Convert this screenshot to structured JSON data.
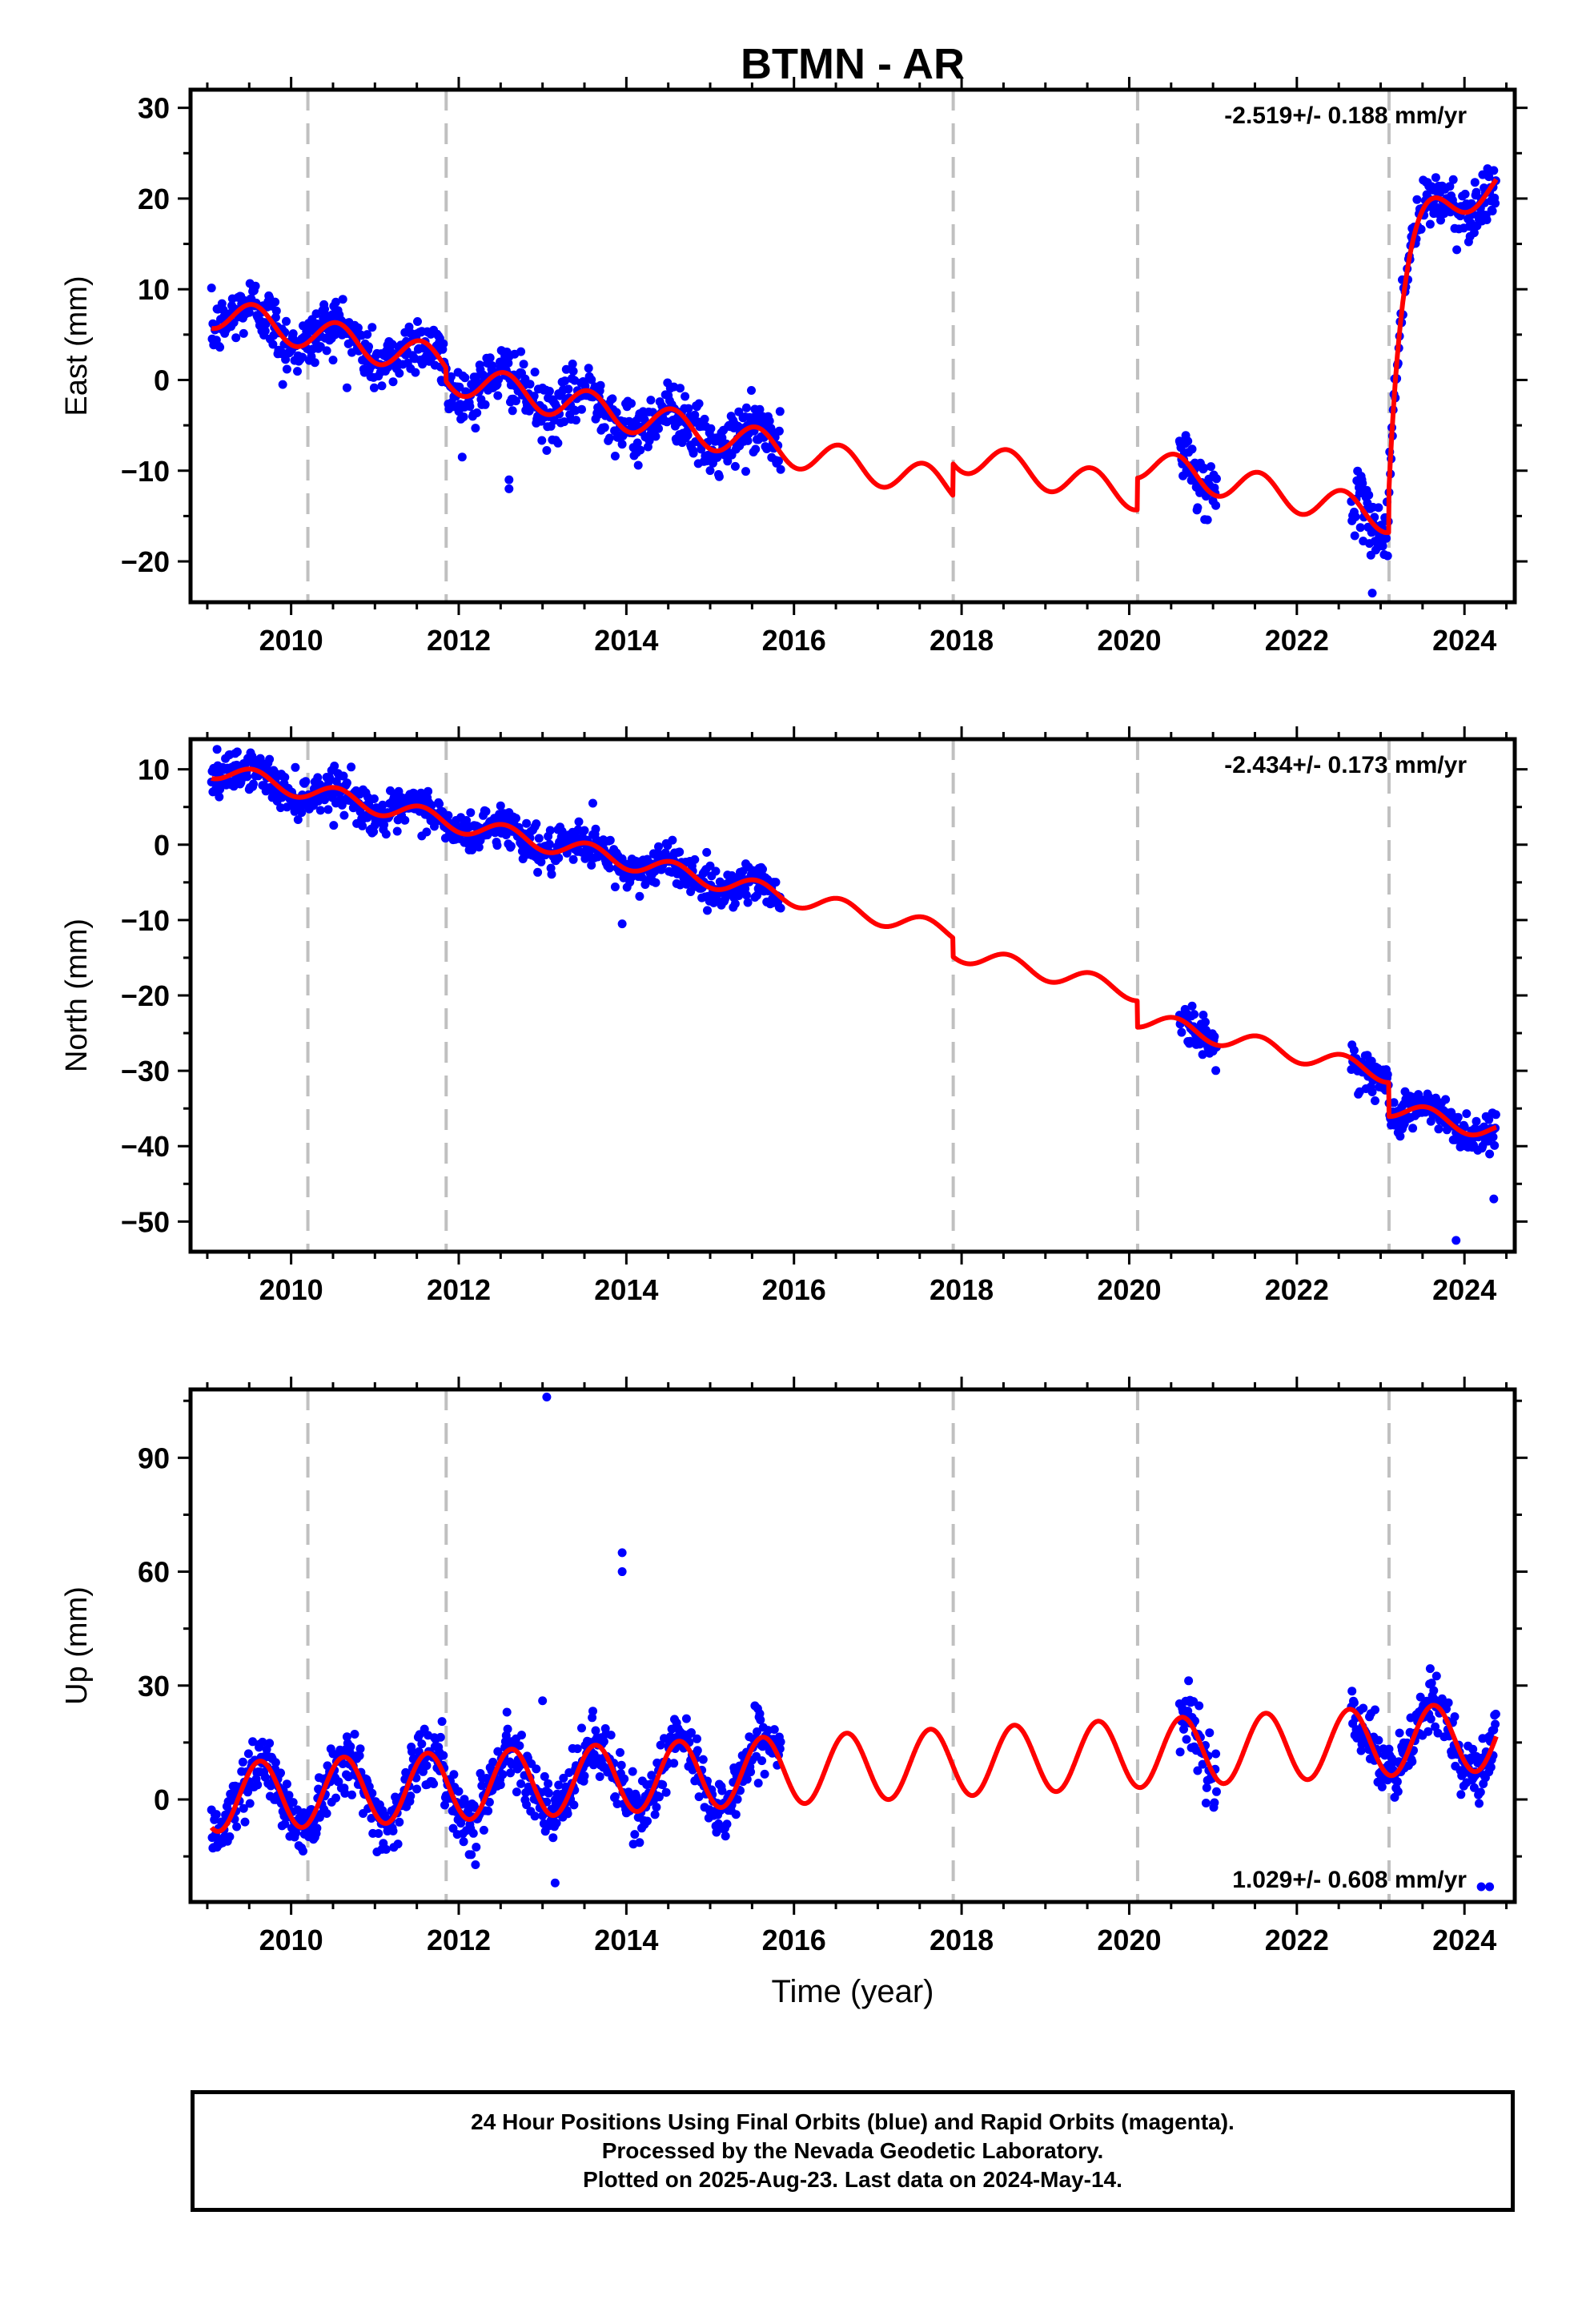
{
  "title": "BTMN - AR",
  "colors": {
    "points": "#0000ff",
    "model": "#ff0000",
    "steps": "#c0c0c0",
    "frame": "#000000"
  },
  "chart_data": [
    {
      "type": "scatter",
      "component": "east",
      "ylabel": "East (mm)",
      "xlabel": "",
      "rate_label": "-2.519+/- 0.188 mm/yr",
      "rate_position": "top-right",
      "xlim": [
        2008.8,
        2024.6
      ],
      "ylim": [
        -24.5,
        32
      ],
      "xticks": [
        2010,
        2012,
        2014,
        2016,
        2018,
        2020,
        2022,
        2024
      ],
      "yticks": [
        -20,
        -10,
        0,
        10,
        20,
        30
      ],
      "step_lines": [
        2010.2,
        2011.85,
        2017.9,
        2020.1,
        2023.1
      ],
      "data_segments": [
        [
          2009.05,
          2015.85
        ],
        [
          2020.6,
          2021.05
        ],
        [
          2022.65,
          2024.38
        ]
      ],
      "model": {
        "start": 2009.05,
        "end": 2024.38,
        "base": 7.5,
        "rate": -2.0,
        "amp": 1.8,
        "phase": 2009.3,
        "noise": 1.6,
        "steps": [
          {
            "t": 2011.85,
            "dy": -1.5
          },
          {
            "t": 2017.9,
            "dy": 3.5
          },
          {
            "t": 2020.1,
            "dy": 3.5
          },
          {
            "t": 2023.1,
            "dy": 33.0,
            "tau": 0.15,
            "post": 6.0
          }
        ]
      },
      "outliers": [
        [
          2012.6,
          -11.0
        ],
        [
          2012.6,
          -12.0
        ],
        [
          2009.9,
          -0.5
        ],
        [
          2022.9,
          -23.5
        ]
      ]
    },
    {
      "type": "scatter",
      "component": "north",
      "ylabel": "North (mm)",
      "xlabel": "",
      "rate_label": "-2.434+/- 0.173 mm/yr",
      "rate_position": "top-right",
      "xlim": [
        2008.8,
        2024.6
      ],
      "ylim": [
        -54,
        14
      ],
      "xticks": [
        2010,
        2012,
        2014,
        2016,
        2018,
        2020,
        2022,
        2024
      ],
      "yticks": [
        -50,
        -40,
        -30,
        -20,
        -10,
        0,
        10
      ],
      "step_lines": [
        2010.2,
        2011.85,
        2017.9,
        2020.1,
        2023.1
      ],
      "data_segments": [
        [
          2009.05,
          2015.85
        ],
        [
          2020.6,
          2021.05
        ],
        [
          2022.65,
          2024.38
        ]
      ],
      "model": {
        "start": 2009.05,
        "end": 2024.38,
        "base": 10.0,
        "rate": -2.45,
        "amp": 1.2,
        "phase": 2009.3,
        "noise": 1.3,
        "steps": [
          {
            "t": 2017.9,
            "dy": -2.5
          },
          {
            "t": 2020.1,
            "dy": -3.5
          },
          {
            "t": 2023.1,
            "dy": -4.5
          }
        ]
      },
      "outliers": [
        [
          2013.95,
          -10.5
        ],
        [
          2023.9,
          -52.5
        ],
        [
          2024.35,
          -47.0
        ],
        [
          2013.6,
          5.5
        ]
      ]
    },
    {
      "type": "scatter",
      "component": "up",
      "ylabel": "Up (mm)",
      "xlabel": "Time (year)",
      "rate_label": "1.029+/- 0.608 mm/yr",
      "rate_position": "bottom-right",
      "xlim": [
        2008.8,
        2024.6
      ],
      "ylim": [
        -27,
        108
      ],
      "xticks": [
        2010,
        2012,
        2014,
        2016,
        2018,
        2020,
        2022,
        2024
      ],
      "yticks": [
        0,
        30,
        60,
        90
      ],
      "step_lines": [
        2010.2,
        2011.85,
        2017.9,
        2020.1,
        2023.1
      ],
      "data_segments": [
        [
          2009.05,
          2015.85
        ],
        [
          2020.6,
          2021.05
        ],
        [
          2022.65,
          2024.38
        ]
      ],
      "model": {
        "start": 2009.05,
        "end": 2024.38,
        "base": 0.5,
        "rate": 1.05,
        "amp": 9.0,
        "phase": 2009.38,
        "noise": 4.0,
        "steps": []
      },
      "outliers": [
        [
          2013.05,
          106.0
        ],
        [
          2013.95,
          65.0
        ],
        [
          2013.95,
          60.0
        ],
        [
          2013.0,
          26.0
        ],
        [
          2024.2,
          -23.0
        ],
        [
          2024.3,
          -23.0
        ],
        [
          2013.15,
          -22.0
        ]
      ]
    }
  ],
  "footer": {
    "lines": [
      "24 Hour Positions Using Final Orbits (blue) and Rapid Orbits (magenta).",
      "Processed by the Nevada Geodetic Laboratory.",
      "Plotted on 2025-Aug-23. Last data on 2024-May-14."
    ]
  }
}
